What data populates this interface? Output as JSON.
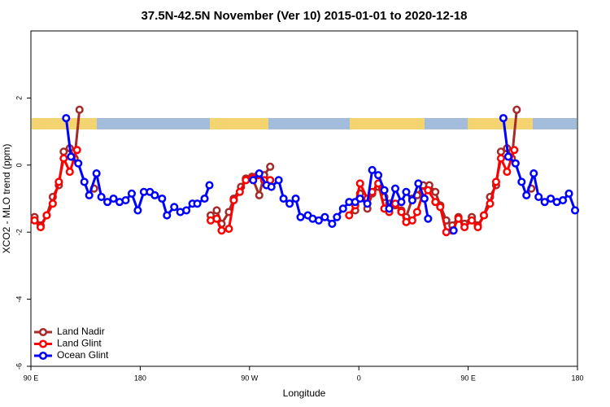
{
  "chart_data": {
    "type": "line",
    "title": "37.5N-42.5N November (Ver 10)   2015-01-01 to 2020-12-18",
    "x_label": "Longitude",
    "y_label": "XCO2 - MLO trend (ppm)",
    "xlim": [
      90,
      540
    ],
    "xticks": [
      {
        "value": 90,
        "label": "90 E"
      },
      180,
      {
        "value": 270,
        "label": "90 W"
      },
      {
        "value": 360,
        "label": "0"
      },
      {
        "value": 450,
        "label": "90 E"
      },
      {
        "value": 540,
        "label": "180"
      }
    ],
    "ylim": [
      -6,
      4
    ],
    "yticks": [
      -6,
      -4,
      -2,
      0,
      2
    ],
    "legend": "bottom-left",
    "series": [
      {
        "name": "Land Nadir",
        "color": "#a52a2a",
        "x": [
          93,
          98,
          103,
          108,
          113,
          117,
          122,
          126,
          130,
          136,
          142,
          190,
          238,
          243,
          247,
          253,
          257,
          263,
          267,
          272,
          278,
          282,
          287,
          320,
          357,
          361,
          367,
          371,
          376,
          381,
          385,
          390,
          395,
          399,
          404,
          408,
          413,
          418,
          423,
          427,
          432,
          437,
          442,
          447,
          453,
          458,
          463,
          468,
          473,
          477,
          482,
          486,
          490,
          496,
          502
        ],
        "values": [
          -1.55,
          -1.8,
          -1.5,
          -0.95,
          -0.6,
          0.4,
          0.5,
          0.2,
          1.65,
          null,
          -0.7,
          null,
          -1.5,
          -1.35,
          -1.75,
          -1.4,
          -1.0,
          -0.65,
          -0.4,
          -0.35,
          -0.9,
          -0.3,
          -0.05,
          null,
          -1.35,
          -0.85,
          -1.3,
          -0.85,
          -0.65,
          -0.95,
          -1.15,
          -1.2,
          -1.35,
          -1.55,
          -1.0,
          -0.9,
          -0.6,
          -0.6,
          -0.8,
          -1.2,
          -1.65,
          -1.8,
          -1.55,
          -1.75,
          -1.55,
          -1.8,
          -1.5,
          -0.95,
          -0.6,
          0.4,
          0.5,
          0.2,
          1.65,
          null,
          -0.7
        ]
      },
      {
        "name": "Land Glint",
        "color": "#ff0000",
        "x": [
          93,
          98,
          103,
          108,
          113,
          117,
          122,
          128,
          183,
          238,
          243,
          247,
          253,
          257,
          262,
          267,
          272,
          277,
          282,
          287,
          320,
          352,
          357,
          361,
          367,
          371,
          376,
          381,
          385,
          390,
          395,
          399,
          404,
          408,
          413,
          417,
          423,
          427,
          432,
          437,
          442,
          447,
          453,
          458,
          463,
          468,
          473,
          477,
          482,
          488
        ],
        "values": [
          -1.65,
          -1.85,
          -1.5,
          -1.15,
          -0.5,
          0.2,
          -0.2,
          0.45,
          null,
          -1.65,
          -1.6,
          -1.95,
          -1.9,
          -1.05,
          -0.8,
          -0.45,
          -0.4,
          -0.3,
          -0.45,
          -0.45,
          null,
          -1.5,
          -1.2,
          -0.55,
          -1.0,
          -0.8,
          -0.55,
          -1.3,
          -1.4,
          -1.15,
          -1.4,
          -1.7,
          -1.65,
          -1.4,
          -0.8,
          -0.75,
          -1.1,
          -1.25,
          -2.0,
          -1.95,
          -1.6,
          -1.85,
          -1.65,
          -1.85,
          -1.5,
          -1.15,
          -0.5,
          0.2,
          -0.2,
          0.45
        ]
      },
      {
        "name": "Ocean Glint",
        "color": "#0000ff",
        "x": [
          119,
          123,
          129,
          134,
          138,
          144,
          148,
          153,
          158,
          163,
          168,
          173,
          178,
          183,
          188,
          192,
          198,
          202,
          208,
          213,
          218,
          223,
          227,
          233,
          237,
          255,
          273,
          278,
          284,
          288,
          294,
          298,
          303,
          308,
          312,
          318,
          322,
          327,
          332,
          338,
          342,
          347,
          352,
          357,
          361,
          367,
          371,
          376,
          381,
          385,
          390,
          395,
          399,
          404,
          409,
          414,
          417,
          427,
          438,
          458,
          479,
          483,
          489,
          494,
          498,
          504,
          508,
          513,
          518,
          523,
          528,
          533,
          538
        ],
        "values": [
          1.4,
          0.25,
          0.05,
          -0.5,
          -0.9,
          -0.25,
          -0.95,
          -1.1,
          -1.0,
          -1.1,
          -1.05,
          -0.85,
          -1.35,
          -0.8,
          -0.8,
          -0.9,
          -1.0,
          -1.5,
          -1.25,
          -1.4,
          -1.35,
          -1.15,
          -1.15,
          -1.0,
          -0.6,
          null,
          -0.45,
          -0.25,
          -0.6,
          -0.65,
          -0.45,
          -1.0,
          -1.15,
          -1.0,
          -1.55,
          -1.5,
          -1.6,
          -1.65,
          -1.55,
          -1.75,
          -1.55,
          -1.3,
          -1.1,
          -1.1,
          -1.0,
          -1.15,
          -0.15,
          -0.3,
          -0.75,
          -1.3,
          -0.7,
          -1.1,
          -0.8,
          -1.05,
          -0.55,
          -1.0,
          -1.6,
          null,
          -1.95,
          null,
          1.4,
          0.25,
          0.05,
          -0.5,
          -0.9,
          -0.25,
          -0.95,
          -1.1,
          -1.0,
          -1.1,
          -1.05,
          -0.85,
          -1.35
        ]
      }
    ]
  }
}
